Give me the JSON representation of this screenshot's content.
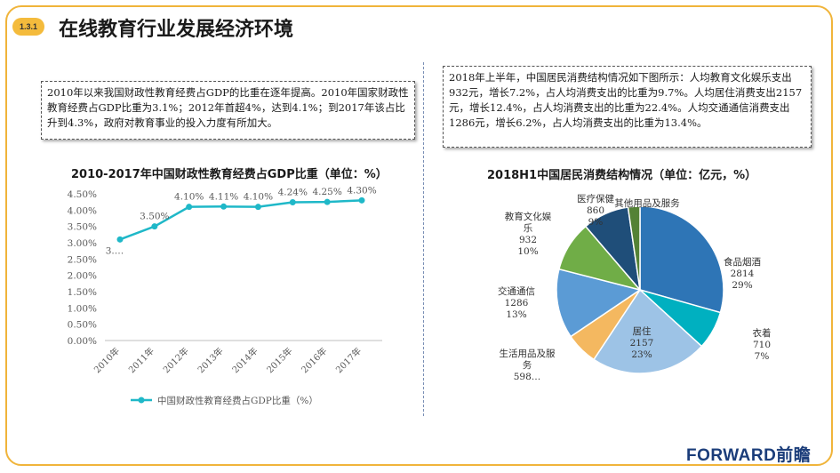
{
  "header": {
    "section_number": "1.3.1",
    "title": "在线教育行业发展经济环境"
  },
  "left_text": "2010年以来我国财政性教育经费占GDP的比重在逐年提高。2010年国家财政性教育经费占GDP比重为3.1%；2012年首超4%，达到4.1%；到2017年该占比升到4.3%，政府对教育事业的投入力度有所加大。",
  "right_text": "2018年上半年，中国居民消费结构情况如下图所示：人均教育文化娱乐支出932元，增长7.2%，占人均消费支出的比重为9.7%。人均居住消费支出2157元，增长12.4%，占人均消费支出的比重为22.4%。人均交通通信消费支出1286元，增长6.2%，占人均消费支出的比重为13.4%。",
  "brand": "FORWARD前瞻",
  "chart_data": [
    {
      "type": "line",
      "title": "2010-2017年中国财政性教育经费占GDP比重（单位：%）",
      "categories": [
        "2010年",
        "2011年",
        "2012年",
        "2013年",
        "2014年",
        "2015年",
        "2016年",
        "2017年"
      ],
      "series": [
        {
          "name": "中国财政性教育经费占GDP比重（%）",
          "values": [
            3.1,
            3.5,
            4.1,
            4.11,
            4.1,
            4.24,
            4.25,
            4.3
          ],
          "data_labels": [
            "3.…",
            "3.50%",
            "4.10%",
            "4.11%",
            "4.10%",
            "4.24%",
            "4.25%",
            "4.30%"
          ],
          "color": "#1fb8c8"
        }
      ],
      "y_ticks": [
        "0.00%",
        "0.50%",
        "1.00%",
        "1.50%",
        "2.00%",
        "2.50%",
        "3.00%",
        "3.50%",
        "4.00%",
        "4.50%"
      ],
      "ylim": [
        0,
        4.5
      ],
      "grid": false,
      "legend": "bottom"
    },
    {
      "type": "pie",
      "title": "2018H1中国居民消费结构情况（单位：亿元，%）",
      "slices": [
        {
          "label_lines": [
            "食品烟酒",
            "2814",
            "29%"
          ],
          "value": 2814,
          "percent": 29,
          "color": "#2e75b6"
        },
        {
          "label_lines": [
            "衣着",
            "710",
            "7%"
          ],
          "value": 710,
          "percent": 7,
          "color": "#00b0c0"
        },
        {
          "label_lines": [
            "居住",
            "2157",
            "23%"
          ],
          "value": 2157,
          "percent": 23,
          "color": "#9dc3e6"
        },
        {
          "label_lines": [
            "生活用品及服",
            "务",
            "598…"
          ],
          "value": 598,
          "percent": 6,
          "color": "#f4b860"
        },
        {
          "label_lines": [
            "交通通信",
            "1286",
            "13%"
          ],
          "value": 1286,
          "percent": 13,
          "color": "#5b9bd5"
        },
        {
          "label_lines": [
            "教育文化娱",
            "乐",
            "932",
            "10%"
          ],
          "value": 932,
          "percent": 10,
          "color": "#70ad47"
        },
        {
          "label_lines": [
            "医疗保健",
            "860",
            "9%"
          ],
          "value": 860,
          "percent": 9,
          "color": "#1f4e79"
        },
        {
          "label_lines": [
            "其他用品及服务"
          ],
          "value": 220,
          "percent": 2,
          "color": "#548235"
        }
      ]
    }
  ]
}
